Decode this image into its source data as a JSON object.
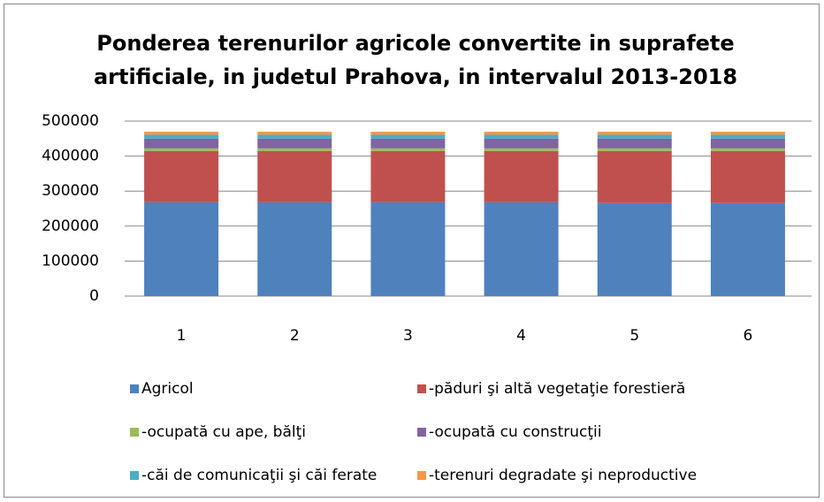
{
  "chart_data": {
    "type": "stacked_bar",
    "title": [
      "Ponderea terenurilor agricole convertite in suprafete",
      "artificiale, in judetul Prahova, in intervalul 2013-2018"
    ],
    "categories": [
      "1",
      "2",
      "3",
      "4",
      "5",
      "6"
    ],
    "series": [
      {
        "name": "Agricol",
        "color": "#4f81bd",
        "values": [
          268000,
          268000,
          268000,
          268000,
          266000,
          266000
        ]
      },
      {
        "name": "-păduri şi altă vegetaţie forestieră",
        "color": "#c0504d",
        "values": [
          146500,
          146500,
          146500,
          146500,
          148500,
          148500
        ]
      },
      {
        "name": "-ocupată cu ape, bălţi",
        "color": "#9bbb59",
        "values": [
          7500,
          7500,
          7500,
          7500,
          7500,
          7500
        ]
      },
      {
        "name": "-ocupată cu construcţii",
        "color": "#8064a2",
        "values": [
          28000,
          28000,
          28000,
          28000,
          28000,
          28000
        ]
      },
      {
        "name": "-căi de comunicaţii şi căi ferate",
        "color": "#4bacc6",
        "values": [
          11000,
          11000,
          11000,
          11000,
          11000,
          11000
        ]
      },
      {
        "name": "-terenuri degradate şi neproductive",
        "color": "#f79646",
        "values": [
          8500,
          8500,
          8500,
          8500,
          8500,
          8500
        ]
      }
    ],
    "ylim": [
      0,
      500000
    ],
    "yticks": [
      0,
      100000,
      200000,
      300000,
      400000,
      500000
    ],
    "grid": true,
    "legend": "bottom"
  }
}
